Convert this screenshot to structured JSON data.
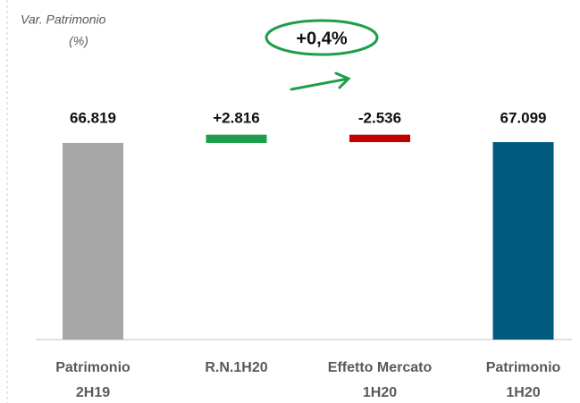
{
  "chart_data": {
    "type": "waterfall",
    "title": [
      "Var. Patrimonio",
      "(%)"
    ],
    "annotation": "+0,4%",
    "categories": [
      [
        "Patrimonio",
        "2H19"
      ],
      [
        "R.N.1H20"
      ],
      [
        "Effetto Mercato",
        "1H20"
      ],
      [
        "Patrimonio",
        "1H20"
      ]
    ],
    "values": [
      66819,
      2816,
      -2536,
      67099
    ],
    "value_labels": [
      "66.819",
      "+2.816",
      "-2.536",
      "67.099"
    ],
    "measure": [
      "absolute",
      "relative",
      "relative",
      "total"
    ],
    "colors": [
      "#a6a6a6",
      "#1e9e4a",
      "#c00000",
      "#005a7d"
    ],
    "ylim": [
      0,
      70000
    ]
  }
}
